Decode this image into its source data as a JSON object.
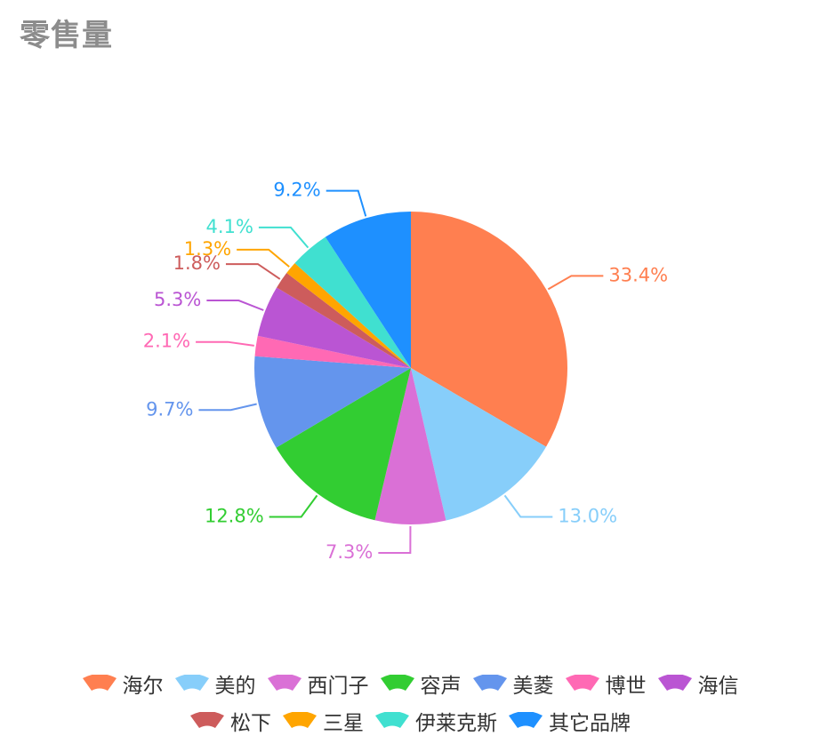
{
  "title": "零售量",
  "chart_data": {
    "type": "pie",
    "title": "零售量",
    "slices": [
      {
        "name": "海尔",
        "value": 33.4,
        "label": "33.4%",
        "color": "#ff7f50"
      },
      {
        "name": "美的",
        "value": 13.0,
        "label": "13.0%",
        "color": "#87cefa"
      },
      {
        "name": "西门子",
        "value": 7.3,
        "label": "7.3%",
        "color": "#da70d6"
      },
      {
        "name": "容声",
        "value": 12.8,
        "label": "12.8%",
        "color": "#32cd32"
      },
      {
        "name": "美菱",
        "value": 9.7,
        "label": "9.7%",
        "color": "#6495ed"
      },
      {
        "name": "博世",
        "value": 2.1,
        "label": "2.1%",
        "color": "#ff69b4"
      },
      {
        "name": "海信",
        "value": 5.3,
        "label": "5.3%",
        "color": "#ba55d3"
      },
      {
        "name": "松下",
        "value": 1.8,
        "label": "1.8%",
        "color": "#cd5c5c"
      },
      {
        "name": "三星",
        "value": 1.3,
        "label": "1.3%",
        "color": "#ffa500"
      },
      {
        "name": "伊莱克斯",
        "value": 4.1,
        "label": "4.1%",
        "color": "#40e0d0"
      },
      {
        "name": "其它品牌",
        "value": 9.2,
        "label": "9.2%",
        "color": "#1e90ff"
      }
    ],
    "start_angle": "12 o'clock",
    "direction": "clockwise",
    "legend_position": "bottom"
  },
  "legend": {
    "rows": [
      [
        "海尔",
        "美的",
        "西门子",
        "容声",
        "美菱",
        "博世",
        "海信"
      ],
      [
        "松下",
        "三星",
        "伊莱克斯",
        "其它品牌"
      ]
    ]
  }
}
